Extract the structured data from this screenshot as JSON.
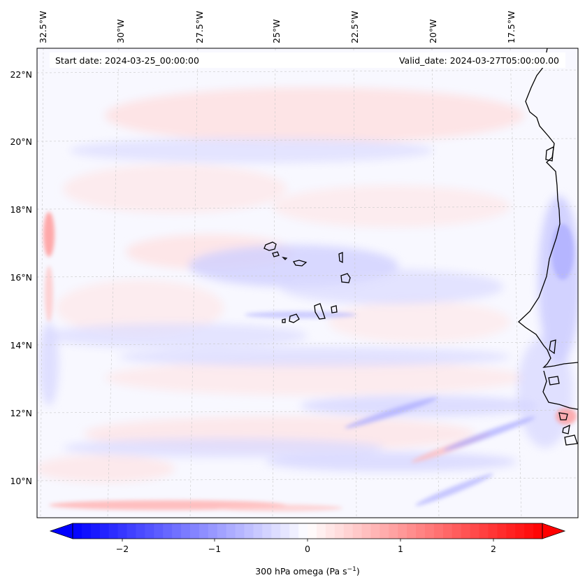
{
  "map": {
    "start_date_label": "Start date: 2024-03-25_00:00:00",
    "valid_date_label": "Valid_date: 2024-03-27T05:00:00.00",
    "lon_ticks": [
      "32.5°W",
      "30°W",
      "27.5°W",
      "25°W",
      "22.5°W",
      "20°W",
      "17.5°W"
    ],
    "lat_ticks": [
      "22°N",
      "20°N",
      "18°N",
      "16°N",
      "14°N",
      "12°N",
      "10°N"
    ],
    "gridlines": true
  },
  "colorbar": {
    "ticks": [
      "−2",
      "−1",
      "0",
      "1",
      "2"
    ],
    "label": "300 hPa omega (Pa s",
    "label_superscript": "−1",
    "label_suffix": ")",
    "colormap": "bwr",
    "range": [
      -2.6,
      2.6
    ],
    "extend": "both",
    "colors": {
      "min": "#0000ff",
      "mid": "#ffffff",
      "max": "#ff0000"
    }
  }
}
